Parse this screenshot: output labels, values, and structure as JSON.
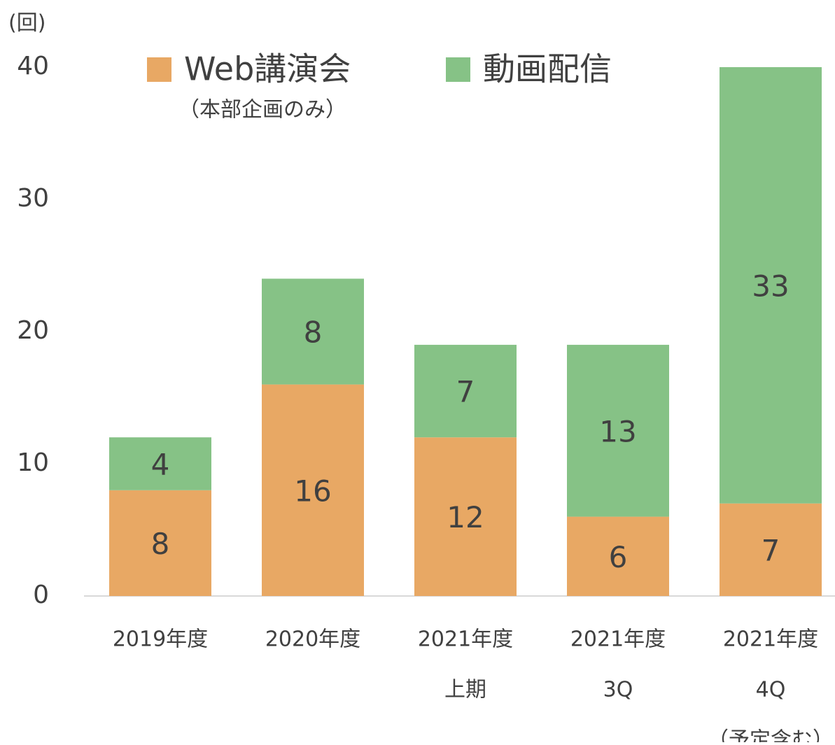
{
  "chart_data": {
    "type": "stacked_bar",
    "y_label": "(回)",
    "categories": [
      [
        "2019年度"
      ],
      [
        "2020年度"
      ],
      [
        "2021年度",
        "上期"
      ],
      [
        "2021年度",
        "3Q"
      ],
      [
        "2021年度",
        "4Q",
        "（予定含む）"
      ]
    ],
    "series": [
      {
        "name": "Web講演会",
        "legend_note": "（本部企画のみ）",
        "color": "#E8A864",
        "values": [
          8,
          16,
          12,
          6,
          7
        ]
      },
      {
        "name": "動画配信",
        "color": "#86C286",
        "values": [
          4,
          8,
          7,
          13,
          33
        ]
      }
    ],
    "ylim": [
      0,
      40
    ],
    "yticks": [
      0,
      10,
      20,
      30,
      40
    ],
    "legend": "top"
  }
}
